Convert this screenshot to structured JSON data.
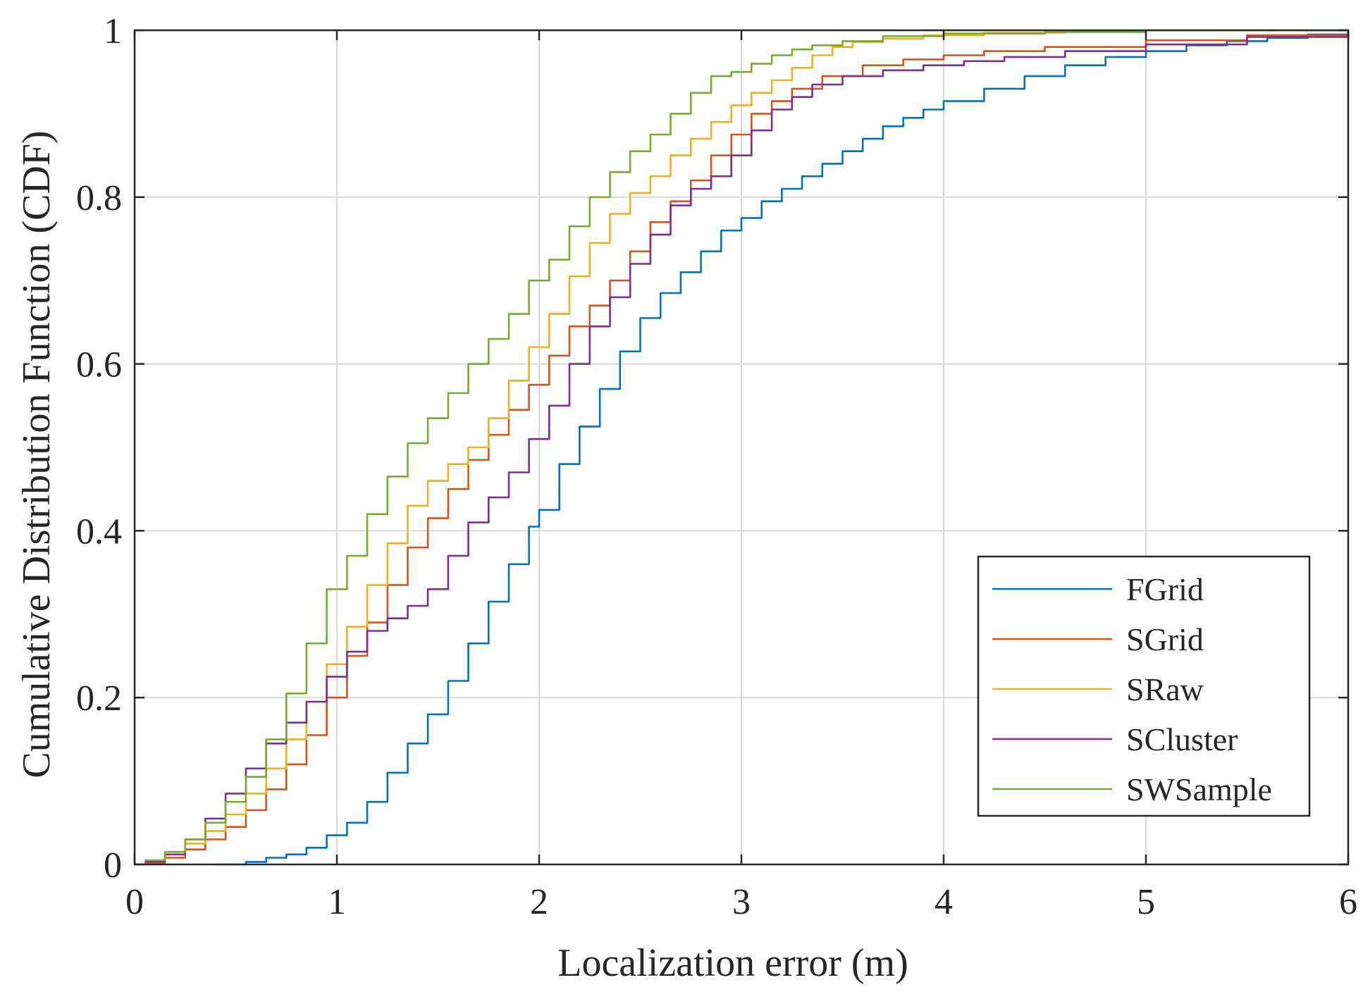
{
  "chart_data": {
    "type": "line",
    "title": "",
    "xlabel": "Localization error (m)",
    "ylabel": "Cumulative Distribution Function (CDF)",
    "xlim": [
      0,
      6
    ],
    "ylim": [
      0,
      1
    ],
    "xticks": [
      0,
      1,
      2,
      3,
      4,
      5,
      6
    ],
    "xtick_labels": [
      "0",
      "1",
      "2",
      "3",
      "4",
      "5",
      "6"
    ],
    "yticks": [
      0,
      0.2,
      0.4,
      0.6,
      0.8,
      1
    ],
    "ytick_labels": [
      "0",
      "0.2",
      "0.4",
      "0.6",
      "0.8",
      "1"
    ],
    "grid": true,
    "legend_position": "bottom-right",
    "series": [
      {
        "name": "FGrid",
        "color": "#0072BD",
        "x": [
          0.4,
          0.55,
          0.65,
          0.75,
          0.85,
          0.95,
          1.05,
          1.15,
          1.25,
          1.35,
          1.45,
          1.55,
          1.65,
          1.75,
          1.85,
          1.95,
          2.0,
          2.1,
          2.2,
          2.3,
          2.4,
          2.5,
          2.6,
          2.7,
          2.8,
          2.9,
          3.0,
          3.1,
          3.2,
          3.3,
          3.4,
          3.5,
          3.6,
          3.7,
          3.8,
          3.9,
          4.0,
          4.2,
          4.4,
          4.6,
          4.8,
          5.0,
          5.2,
          5.4,
          5.6,
          5.8,
          6.0
        ],
        "y": [
          0.0,
          0.003,
          0.008,
          0.012,
          0.02,
          0.035,
          0.05,
          0.075,
          0.11,
          0.145,
          0.18,
          0.22,
          0.265,
          0.315,
          0.36,
          0.405,
          0.425,
          0.48,
          0.525,
          0.57,
          0.615,
          0.655,
          0.685,
          0.71,
          0.735,
          0.76,
          0.775,
          0.795,
          0.81,
          0.825,
          0.84,
          0.855,
          0.87,
          0.885,
          0.895,
          0.905,
          0.915,
          0.93,
          0.945,
          0.958,
          0.968,
          0.975,
          0.982,
          0.987,
          0.991,
          0.995,
          0.998
        ]
      },
      {
        "name": "SGrid",
        "color": "#D95319",
        "x": [
          0.05,
          0.15,
          0.25,
          0.35,
          0.45,
          0.55,
          0.65,
          0.75,
          0.85,
          0.95,
          1.05,
          1.15,
          1.25,
          1.35,
          1.45,
          1.55,
          1.65,
          1.75,
          1.85,
          1.95,
          2.05,
          2.15,
          2.25,
          2.35,
          2.45,
          2.55,
          2.65,
          2.75,
          2.85,
          2.95,
          3.05,
          3.15,
          3.25,
          3.4,
          3.6,
          3.8,
          4.0,
          4.2,
          4.5,
          5.0,
          5.5,
          6.0
        ],
        "y": [
          0.002,
          0.008,
          0.018,
          0.03,
          0.045,
          0.065,
          0.09,
          0.12,
          0.155,
          0.2,
          0.25,
          0.29,
          0.335,
          0.38,
          0.415,
          0.45,
          0.485,
          0.515,
          0.545,
          0.575,
          0.61,
          0.645,
          0.67,
          0.7,
          0.735,
          0.77,
          0.795,
          0.82,
          0.85,
          0.875,
          0.9,
          0.915,
          0.93,
          0.945,
          0.958,
          0.965,
          0.97,
          0.975,
          0.98,
          0.988,
          0.994,
          0.998
        ]
      },
      {
        "name": "SRaw",
        "color": "#EDB120",
        "x": [
          0.05,
          0.15,
          0.25,
          0.35,
          0.45,
          0.55,
          0.65,
          0.75,
          0.85,
          0.95,
          1.05,
          1.15,
          1.25,
          1.35,
          1.45,
          1.55,
          1.65,
          1.75,
          1.85,
          1.95,
          2.05,
          2.15,
          2.25,
          2.35,
          2.45,
          2.55,
          2.65,
          2.75,
          2.85,
          2.95,
          3.05,
          3.15,
          3.25,
          3.35,
          3.45,
          3.55,
          3.7,
          3.9,
          4.2,
          4.6,
          5.0,
          6.0
        ],
        "y": [
          0.003,
          0.012,
          0.025,
          0.04,
          0.06,
          0.085,
          0.115,
          0.15,
          0.195,
          0.24,
          0.285,
          0.335,
          0.385,
          0.43,
          0.46,
          0.48,
          0.5,
          0.535,
          0.58,
          0.62,
          0.66,
          0.705,
          0.745,
          0.78,
          0.805,
          0.825,
          0.85,
          0.87,
          0.89,
          0.91,
          0.925,
          0.94,
          0.955,
          0.97,
          0.98,
          0.986,
          0.99,
          0.994,
          0.997,
          0.999,
          1.0,
          1.0
        ]
      },
      {
        "name": "SCluster",
        "color": "#7E2F8E",
        "x": [
          0.05,
          0.15,
          0.25,
          0.35,
          0.45,
          0.55,
          0.65,
          0.75,
          0.85,
          0.95,
          1.05,
          1.15,
          1.25,
          1.35,
          1.45,
          1.55,
          1.65,
          1.75,
          1.85,
          1.95,
          2.05,
          2.15,
          2.25,
          2.35,
          2.45,
          2.55,
          2.65,
          2.75,
          2.85,
          2.95,
          3.05,
          3.15,
          3.25,
          3.35,
          3.5,
          3.7,
          3.9,
          4.1,
          4.3,
          4.6,
          5.0,
          5.5,
          6.0
        ],
        "y": [
          0.003,
          0.012,
          0.03,
          0.055,
          0.085,
          0.115,
          0.145,
          0.17,
          0.195,
          0.225,
          0.255,
          0.28,
          0.295,
          0.31,
          0.33,
          0.37,
          0.41,
          0.44,
          0.47,
          0.51,
          0.55,
          0.6,
          0.645,
          0.68,
          0.72,
          0.755,
          0.79,
          0.81,
          0.825,
          0.85,
          0.88,
          0.905,
          0.92,
          0.935,
          0.945,
          0.952,
          0.958,
          0.963,
          0.968,
          0.975,
          0.983,
          0.992,
          0.997
        ]
      },
      {
        "name": "SWSample",
        "color": "#77AC30",
        "x": [
          0.05,
          0.15,
          0.25,
          0.35,
          0.45,
          0.55,
          0.65,
          0.75,
          0.85,
          0.95,
          1.05,
          1.15,
          1.25,
          1.35,
          1.45,
          1.55,
          1.65,
          1.75,
          1.85,
          1.95,
          2.05,
          2.15,
          2.25,
          2.35,
          2.45,
          2.55,
          2.65,
          2.75,
          2.85,
          2.95,
          3.05,
          3.15,
          3.25,
          3.35,
          3.5,
          3.7,
          4.0,
          4.5,
          5.0,
          6.0
        ],
        "y": [
          0.005,
          0.015,
          0.03,
          0.05,
          0.075,
          0.105,
          0.15,
          0.205,
          0.265,
          0.33,
          0.37,
          0.42,
          0.465,
          0.505,
          0.535,
          0.565,
          0.6,
          0.63,
          0.66,
          0.7,
          0.725,
          0.765,
          0.8,
          0.83,
          0.855,
          0.875,
          0.9,
          0.925,
          0.945,
          0.95,
          0.96,
          0.97,
          0.977,
          0.982,
          0.987,
          0.993,
          0.996,
          0.998,
          1.0,
          1.0
        ]
      }
    ]
  }
}
